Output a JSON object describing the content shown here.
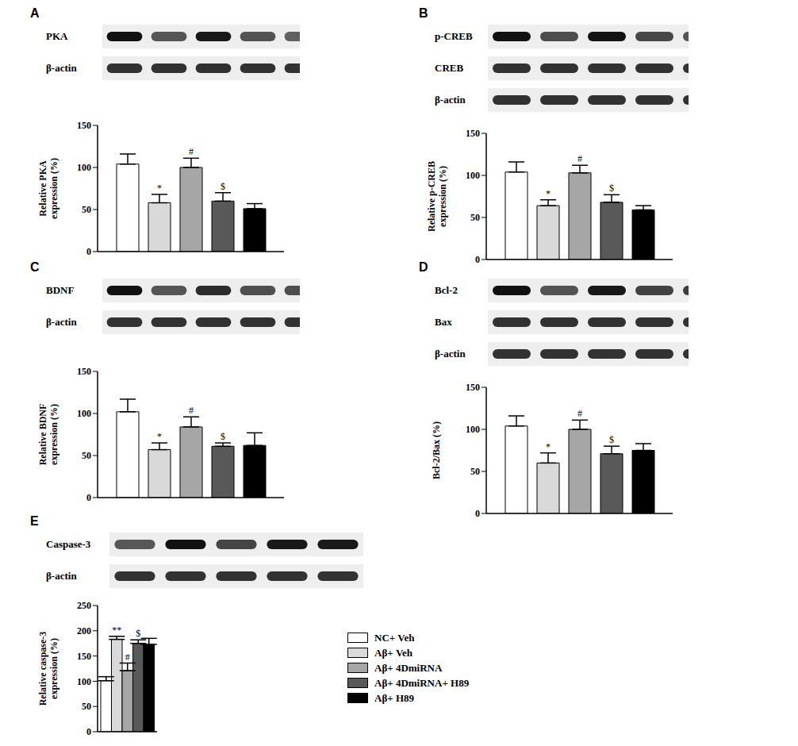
{
  "chart_data": [
    {
      "type": "bar",
      "title": "A",
      "blot_labels": [
        "PKA",
        "β-actin"
      ],
      "ylabel": "Relative PKA expression (%)",
      "categories": [
        null
      ],
      "ylim": [
        0,
        150
      ],
      "yticks": [
        0,
        50,
        100,
        150
      ],
      "tick_labels": "y",
      "series": [
        {
          "name": "NC+ Veh",
          "color": "#ffffff",
          "values": [
            104
          ],
          "error": [
            12
          ],
          "annotations": [
            null
          ]
        },
        {
          "name": "Aβ+ Veh",
          "color": "#d9d9d9",
          "values": [
            58
          ],
          "error": [
            10
          ],
          "annotations": [
            "*"
          ]
        },
        {
          "name": "Aβ+ 4DmiRNA",
          "color": "#a6a6a6",
          "values": [
            100
          ],
          "error": [
            11
          ],
          "annotations": [
            "#"
          ]
        },
        {
          "name": "Aβ+ 4DmiRNA+ H89",
          "color": "#595959",
          "values": [
            60
          ],
          "error": [
            10
          ],
          "annotations": [
            "$"
          ]
        },
        {
          "name": "Aβ+ H89",
          "color": "#000000",
          "values": [
            51
          ],
          "error": [
            6
          ],
          "annotations": [
            null
          ]
        }
      ]
    },
    {
      "type": "bar",
      "title": "B",
      "blot_labels": [
        "p-CREB",
        "CREB",
        "β-actin"
      ],
      "ylabel": "Relative p-CREB expression (%)",
      "categories": [
        null
      ],
      "ylim": [
        0,
        150
      ],
      "yticks": [
        0,
        50,
        100,
        150
      ],
      "tick_labels": "y",
      "series": [
        {
          "name": "NC+ Veh",
          "color": "#ffffff",
          "values": [
            104
          ],
          "error": [
            12
          ],
          "annotations": [
            null
          ]
        },
        {
          "name": "Aβ+ Veh",
          "color": "#d9d9d9",
          "values": [
            64
          ],
          "error": [
            7
          ],
          "annotations": [
            "*"
          ]
        },
        {
          "name": "Aβ+ 4DmiRNA",
          "color": "#a6a6a6",
          "values": [
            103
          ],
          "error": [
            9
          ],
          "annotations": [
            "#"
          ]
        },
        {
          "name": "Aβ+ 4DmiRNA+ H89",
          "color": "#595959",
          "values": [
            68
          ],
          "error": [
            9
          ],
          "annotations": [
            "$"
          ]
        },
        {
          "name": "Aβ+ H89",
          "color": "#000000",
          "values": [
            59
          ],
          "error": [
            5
          ],
          "annotations": [
            null
          ]
        }
      ]
    },
    {
      "type": "bar",
      "title": "C",
      "blot_labels": [
        "BDNF",
        "β-actin"
      ],
      "ylabel": "Relative BDNF expression (%)",
      "categories": [
        null
      ],
      "ylim": [
        0,
        150
      ],
      "yticks": [
        0,
        50,
        100,
        150
      ],
      "tick_labels": "y",
      "series": [
        {
          "name": "NC+ Veh",
          "color": "#ffffff",
          "values": [
            102
          ],
          "error": [
            15
          ],
          "annotations": [
            null
          ]
        },
        {
          "name": "Aβ+ Veh",
          "color": "#d9d9d9",
          "values": [
            57
          ],
          "error": [
            8
          ],
          "annotations": [
            "*"
          ]
        },
        {
          "name": "Aβ+ 4DmiRNA",
          "color": "#a6a6a6",
          "values": [
            84
          ],
          "error": [
            12
          ],
          "annotations": [
            "#"
          ]
        },
        {
          "name": "Aβ+ 4DmiRNA+ H89",
          "color": "#595959",
          "values": [
            61
          ],
          "error": [
            4
          ],
          "annotations": [
            "$"
          ]
        },
        {
          "name": "Aβ+ H89",
          "color": "#000000",
          "values": [
            62
          ],
          "error": [
            15
          ],
          "annotations": [
            null
          ]
        }
      ]
    },
    {
      "type": "bar",
      "title": "D",
      "blot_labels": [
        "Bcl-2",
        "Bax",
        "β-actin"
      ],
      "ylabel": "Bcl-2/Bax (%)",
      "categories": [
        null
      ],
      "ylim": [
        0,
        150
      ],
      "yticks": [
        0,
        50,
        100,
        150
      ],
      "tick_labels": "y",
      "series": [
        {
          "name": "NC+ Veh",
          "color": "#ffffff",
          "values": [
            104
          ],
          "error": [
            12
          ],
          "annotations": [
            null
          ]
        },
        {
          "name": "Aβ+ Veh",
          "color": "#d9d9d9",
          "values": [
            60
          ],
          "error": [
            12
          ],
          "annotations": [
            "*"
          ]
        },
        {
          "name": "Aβ+ 4DmiRNA",
          "color": "#a6a6a6",
          "values": [
            100
          ],
          "error": [
            11
          ],
          "annotations": [
            "#"
          ]
        },
        {
          "name": "Aβ+ 4DmiRNA+ H89",
          "color": "#595959",
          "values": [
            71
          ],
          "error": [
            9
          ],
          "annotations": [
            "$"
          ]
        },
        {
          "name": "Aβ+ H89",
          "color": "#000000",
          "values": [
            75
          ],
          "error": [
            8
          ],
          "annotations": [
            null
          ]
        }
      ]
    },
    {
      "type": "bar",
      "title": "E",
      "blot_labels": [
        "Caspase-3",
        "β-actin"
      ],
      "ylabel": "Relative caspase-3 expression (%)",
      "categories": [
        null
      ],
      "ylim": [
        0,
        250
      ],
      "yticks": [
        0,
        50,
        100,
        150,
        200,
        250
      ],
      "tick_labels": "y",
      "legend": "right",
      "series": [
        {
          "name": "NC+ Veh",
          "color": "#ffffff",
          "values": [
            101
          ],
          "error": [
            8
          ],
          "annotations": [
            null
          ]
        },
        {
          "name": "Aβ+ Veh",
          "color": "#d9d9d9",
          "values": [
            183
          ],
          "error": [
            6
          ],
          "annotations": [
            "**"
          ]
        },
        {
          "name": "Aβ+ 4DmiRNA",
          "color": "#a6a6a6",
          "values": [
            121
          ],
          "error": [
            15
          ],
          "annotations": [
            "#"
          ]
        },
        {
          "name": "Aβ+ 4DmiRNA+ H89",
          "color": "#595959",
          "values": [
            175
          ],
          "error": [
            7
          ],
          "annotations": [
            "$"
          ]
        },
        {
          "name": "Aβ+ H89",
          "color": "#000000",
          "values": [
            173
          ],
          "error": [
            12
          ],
          "annotations": [
            null
          ]
        }
      ]
    }
  ]
}
